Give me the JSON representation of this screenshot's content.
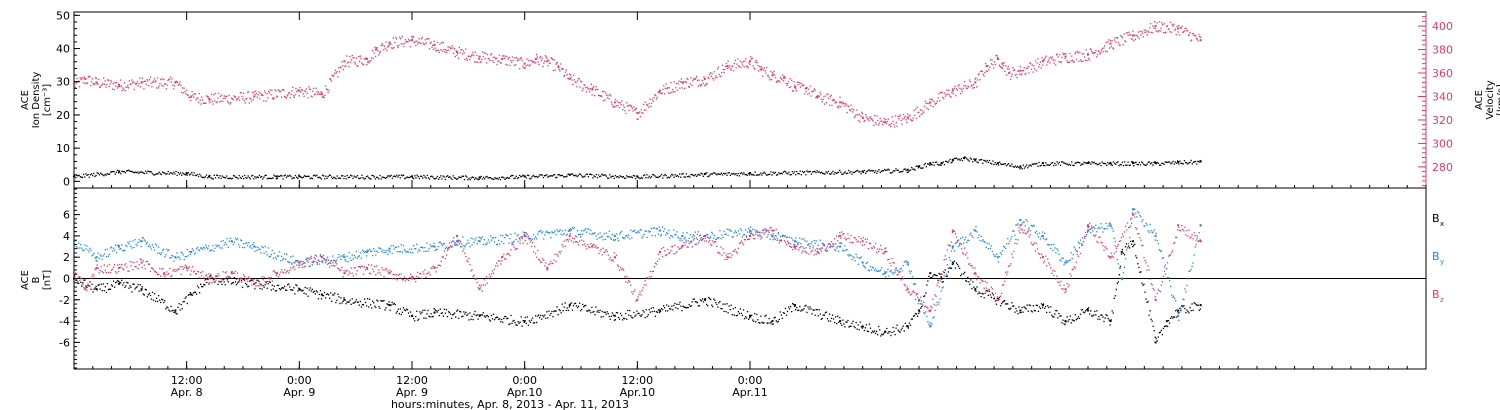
{
  "chart_data": [
    {
      "type": "scatter",
      "panel": "top",
      "left_axis": {
        "label_lines": [
          "ACE",
          "Ion Density",
          "[cm⁻³]"
        ],
        "ylim": [
          -2,
          51
        ],
        "ticks": [
          0,
          10,
          20,
          30,
          40,
          50
        ],
        "tick_labels": [
          "0",
          "10",
          "20",
          "30",
          "40",
          "50"
        ],
        "color": "#000000"
      },
      "right_axis": {
        "label_lines": [
          "ACE",
          "Velocity",
          "[km/s]"
        ],
        "ylim": [
          262,
          412
        ],
        "ticks": [
          280,
          300,
          320,
          340,
          360,
          380,
          400
        ],
        "tick_labels": [
          "280",
          "300",
          "320",
          "340",
          "360",
          "380",
          "400"
        ],
        "color": "#e23a6a"
      },
      "series": [
        {
          "axis": "right",
          "color": "#e23a6a",
          "x": [
            0.0,
            0.05,
            0.1,
            0.2,
            0.3,
            0.45,
            0.52,
            0.6,
            0.8,
            1.0,
            1.1,
            1.2,
            1.3,
            1.34,
            1.4,
            1.5,
            1.6,
            1.7,
            1.8,
            1.9,
            2.0,
            2.05,
            2.1,
            2.15,
            2.2,
            2.3,
            2.4,
            2.5,
            2.6,
            2.7,
            2.8,
            2.9,
            3.0,
            3.05,
            3.1,
            3.15,
            3.2,
            3.25,
            3.3,
            3.4,
            3.5,
            3.6,
            3.7,
            3.8,
            3.9,
            4.0,
            4.05,
            4.1,
            4.12,
            4.15,
            4.2,
            4.3,
            4.4,
            4.5,
            4.6,
            4.7,
            4.8,
            4.9,
            5.0
          ],
          "y": [
            350,
            355,
            352,
            350,
            352,
            352,
            340,
            338,
            340,
            345,
            342,
            370,
            372,
            380,
            386,
            388,
            384,
            378,
            374,
            372,
            368,
            372,
            370,
            365,
            355,
            346,
            335,
            326,
            345,
            352,
            355,
            366,
            370,
            363,
            358,
            356,
            348,
            347,
            340,
            335,
            322,
            318,
            322,
            335,
            345,
            352,
            366,
            372,
            368,
            360,
            362,
            370,
            374,
            376,
            385,
            392,
            400,
            398,
            388
          ]
        },
        {
          "axis": "left",
          "color": "#000000",
          "x": [
            0.0,
            0.2,
            0.5,
            0.6,
            0.9,
            1.0,
            1.5,
            1.8,
            2.0,
            2.2,
            2.5,
            2.8,
            3.0,
            3.5,
            3.7,
            3.75,
            3.8,
            3.85,
            3.9,
            3.95,
            4.0,
            4.1,
            4.2,
            4.3,
            4.5,
            4.6,
            4.7,
            4.8,
            4.9,
            5.0
          ],
          "y": [
            1.5,
            3.0,
            2.5,
            1.5,
            1.5,
            1.5,
            1.5,
            1.2,
            1.5,
            2.0,
            1.5,
            2.2,
            2.5,
            3.0,
            3.5,
            4.5,
            5.5,
            5.5,
            6.5,
            7.0,
            6.5,
            5.5,
            4.5,
            5.5,
            5.5,
            5.5,
            5.5,
            5.5,
            5.8,
            6.0
          ]
        }
      ],
      "xlim": [
        0,
        6
      ],
      "grid": false
    },
    {
      "type": "scatter",
      "panel": "bottom",
      "left_axis": {
        "label_lines": [
          "ACE",
          "B",
          "[nT]"
        ],
        "ylim": [
          -8.5,
          8.5
        ],
        "ticks": [
          -6,
          -4,
          -2,
          0,
          2,
          4,
          6
        ],
        "tick_labels": [
          "-6",
          "-4",
          "-2",
          "0",
          "2",
          "4",
          "6"
        ],
        "color": "#000000"
      },
      "zero_line": true,
      "legend": {
        "placement": "right",
        "entries": [
          {
            "name": "B",
            "sub": "x",
            "color": "#000000"
          },
          {
            "name": "B",
            "sub": "y",
            "color": "#1e88e5"
          },
          {
            "name": "B",
            "sub": "z",
            "color": "#e23a6a"
          }
        ]
      },
      "series": [
        {
          "name": "Bx",
          "color": "#000000",
          "x": [
            0.0,
            0.1,
            0.2,
            0.3,
            0.45,
            0.52,
            0.6,
            0.8,
            1.0,
            1.1,
            1.2,
            1.4,
            1.5,
            1.6,
            1.8,
            2.0,
            2.2,
            2.4,
            2.6,
            2.8,
            3.0,
            3.1,
            3.2,
            3.4,
            3.5,
            3.6,
            3.7,
            3.75,
            3.8,
            3.85,
            3.9,
            4.0,
            4.1,
            4.2,
            4.3,
            4.4,
            4.5,
            4.6,
            4.65,
            4.7,
            4.8,
            4.85,
            4.9,
            5.0
          ],
          "y": [
            0,
            -1,
            -0.5,
            -1,
            -3,
            -1.5,
            0,
            -0.5,
            -1,
            -1.5,
            -2,
            -2.5,
            -3.5,
            -3.2,
            -3.5,
            -4,
            -2.5,
            -3.5,
            -3,
            -2,
            -3.5,
            -4,
            -2.5,
            -4,
            -4.5,
            -5,
            -4.5,
            -3,
            0.5,
            0,
            1.5,
            -1,
            -2,
            -3,
            -2.5,
            -4,
            -3,
            -4,
            2.5,
            3.5,
            -6,
            -4,
            -3,
            -2.5
          ]
        },
        {
          "name": "By",
          "color": "#1e88e5",
          "x": [
            0.0,
            0.1,
            0.2,
            0.3,
            0.45,
            0.52,
            0.7,
            0.8,
            1.0,
            1.2,
            1.3,
            1.4,
            1.6,
            1.7,
            1.8,
            2.0,
            2.2,
            2.4,
            2.6,
            2.7,
            2.8,
            3.0,
            3.1,
            3.2,
            3.4,
            3.5,
            3.6,
            3.7,
            3.75,
            3.8,
            3.9,
            4.0,
            4.1,
            4.2,
            4.3,
            4.4,
            4.5,
            4.6,
            4.65,
            4.7,
            4.8,
            4.9,
            5.0
          ],
          "y": [
            3.5,
            2,
            3,
            3.5,
            2,
            2.5,
            3.5,
            3,
            1.5,
            2,
            2.5,
            2.8,
            3,
            3.5,
            3.5,
            4,
            4.5,
            4,
            4.5,
            4,
            4,
            4.5,
            4,
            3.5,
            3,
            1.5,
            0.5,
            1.5,
            -2,
            -4.5,
            3,
            4.5,
            2,
            5.5,
            4,
            1.5,
            4.5,
            5,
            0,
            6.5,
            4,
            -3.5,
            5
          ]
        },
        {
          "name": "Bz",
          "color": "#e23a6a",
          "x": [
            0.0,
            0.05,
            0.1,
            0.2,
            0.3,
            0.4,
            0.5,
            0.6,
            0.7,
            0.8,
            0.9,
            1.0,
            1.1,
            1.2,
            1.3,
            1.4,
            1.5,
            1.6,
            1.7,
            1.8,
            1.9,
            2.0,
            2.1,
            2.2,
            2.3,
            2.4,
            2.5,
            2.6,
            2.7,
            2.8,
            2.9,
            3.0,
            3.1,
            3.2,
            3.3,
            3.4,
            3.5,
            3.6,
            3.7,
            3.8,
            3.9,
            4.0,
            4.1,
            4.2,
            4.3,
            4.4,
            4.5,
            4.6,
            4.7,
            4.8,
            4.9,
            5.0
          ],
          "y": [
            0.5,
            -1,
            1,
            1,
            1.5,
            0.5,
            1,
            0,
            0.5,
            -0.5,
            0.5,
            1.5,
            2,
            0.5,
            1,
            0.5,
            0,
            1,
            4,
            -1,
            2,
            4,
            1,
            4,
            3,
            2,
            -2,
            2.5,
            3,
            4,
            2,
            4,
            4.5,
            3,
            2.5,
            4,
            3.5,
            2.5,
            -1,
            -3,
            4.5,
            0.5,
            -2,
            5,
            2,
            -1,
            5,
            2,
            6,
            -2,
            5,
            3.5
          ]
        }
      ],
      "xlim": [
        0,
        6
      ],
      "grid": false
    }
  ],
  "x_axis": {
    "ticks": [
      {
        "x": 0.5,
        "line1": "12:00",
        "line2": "Apr. 8"
      },
      {
        "x": 1.0,
        "line1": "0:00",
        "line2": "Apr. 9"
      },
      {
        "x": 1.5,
        "line1": "12:00",
        "line2": "Apr. 9"
      },
      {
        "x": 2.0,
        "line1": "0:00",
        "line2": "Apr.10"
      },
      {
        "x": 2.5,
        "line1": "12:00",
        "line2": "Apr.10"
      },
      {
        "x": 3.0,
        "line1": "0:00",
        "line2": "Apr.11"
      }
    ],
    "title": "hours:minutes, Apr.  8, 2013 - Apr. 11, 2013"
  }
}
